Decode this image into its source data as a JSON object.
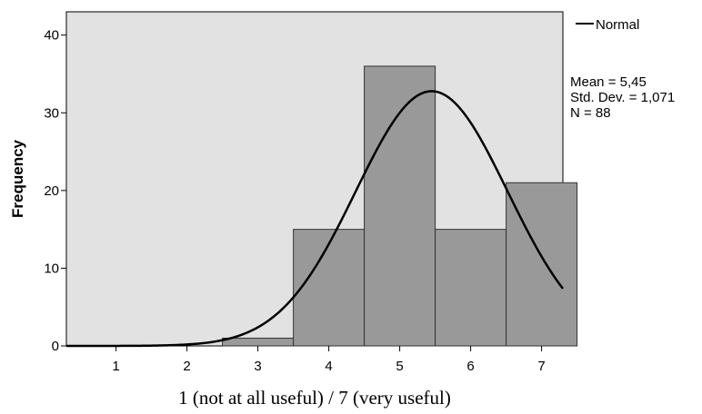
{
  "chart_data": {
    "type": "bar",
    "subtype": "histogram",
    "categories": [
      "1",
      "2",
      "3",
      "4",
      "5",
      "6",
      "7"
    ],
    "bins": [
      {
        "x": 1,
        "value": 0
      },
      {
        "x": 2,
        "value": 0
      },
      {
        "x": 3,
        "value": 1
      },
      {
        "x": 4,
        "value": 15
      },
      {
        "x": 5,
        "value": 36
      },
      {
        "x": 6,
        "value": 15
      },
      {
        "x": 7,
        "value": 21
      }
    ],
    "xlabel": "1 (not at all useful) / 7 (very useful)",
    "ylabel": "Frequency",
    "xlim": [
      0.3,
      7.3
    ],
    "ylim": [
      0,
      43
    ],
    "yticks": [
      0,
      10,
      20,
      30,
      40
    ],
    "xticks": [
      1,
      2,
      3,
      4,
      5,
      6,
      7
    ],
    "normal_curve": {
      "mean": 5.45,
      "sd": 1.071,
      "n": 88,
      "bin_width": 1
    },
    "legend": {
      "label": "Normal",
      "position": "top-right"
    },
    "stats": [
      "Mean = 5,45",
      "Std. Dev. = 1,071",
      "N = 88"
    ],
    "colors": {
      "plot_bg": "#e2e2e2",
      "bar_fill": "#999999",
      "bar_stroke": "#333333",
      "curve": "#000000"
    }
  }
}
